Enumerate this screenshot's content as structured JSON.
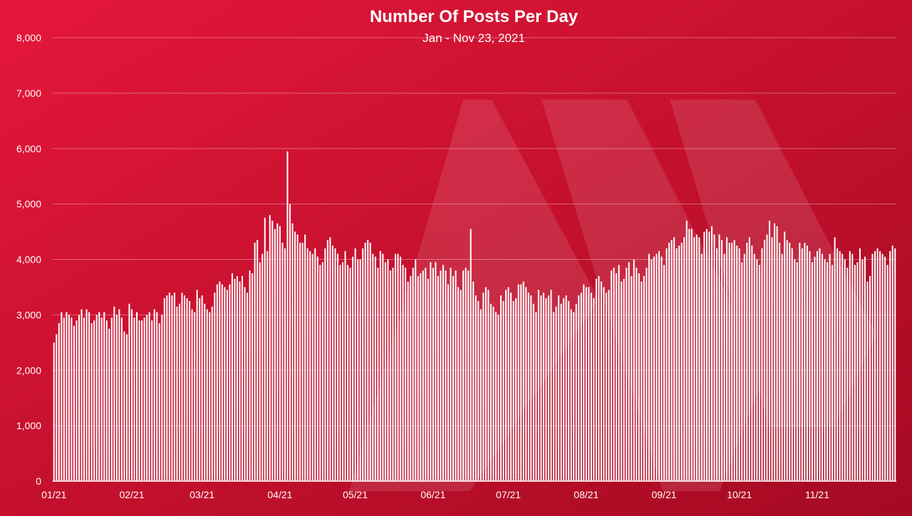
{
  "colors": {
    "background_top": "#e5173a",
    "background_bottom": "#a50a22",
    "bars": "#ffffff",
    "gridlines": "#ffffff",
    "watermark": "#ffffff"
  },
  "watermark_icon": "hive-logo-icon",
  "chart_data": {
    "type": "bar",
    "title": "Number Of Posts Per Day",
    "subtitle": "Jan - Nov 23, 2021",
    "xlabel": "",
    "ylabel": "",
    "ylim": [
      0,
      8000
    ],
    "grid": true,
    "y_ticks": [
      0,
      1000,
      2000,
      3000,
      4000,
      5000,
      6000,
      7000,
      8000
    ],
    "y_tick_labels": [
      "0",
      "1,000",
      "2,000",
      "3,000",
      "4,000",
      "5,000",
      "6,000",
      "7,000",
      "8,000"
    ],
    "x_tick_labels": [
      "01/21",
      "02/21",
      "03/21",
      "04/21",
      "05/21",
      "06/21",
      "07/21",
      "08/21",
      "09/21",
      "10/21",
      "11/21"
    ],
    "x_tick_day_index": [
      0,
      31,
      59,
      90,
      120,
      151,
      181,
      212,
      243,
      273,
      304
    ],
    "series": [
      {
        "values": [
          2500,
          2650,
          2850,
          3050,
          2950,
          3050,
          3000,
          2950,
          2800,
          2900,
          3000,
          3100,
          2950,
          3100,
          3050,
          2850,
          2900,
          3000,
          3050,
          2950,
          3050,
          2900,
          2750,
          2950,
          3150,
          3000,
          3100,
          2950,
          2700,
          2650,
          3200,
          3100,
          2950,
          3050,
          2900,
          2900,
          2950,
          3000,
          3050,
          2900,
          3100,
          3050,
          2850,
          3000,
          3300,
          3350,
          3400,
          3350,
          3400,
          3150,
          3200,
          3400,
          3350,
          3300,
          3250,
          3100,
          3050,
          3450,
          3300,
          3350,
          3200,
          3100,
          3050,
          3150,
          3400,
          3550,
          3600,
          3550,
          3500,
          3450,
          3550,
          3750,
          3650,
          3700,
          3600,
          3700,
          3500,
          3400,
          3800,
          3750,
          4300,
          4350,
          3950,
          4100,
          4750,
          4150,
          4800,
          4700,
          4550,
          4650,
          4600,
          4300,
          4200,
          5950,
          5000,
          4650,
          4500,
          4450,
          4300,
          4300,
          4450,
          4200,
          4150,
          4100,
          4200,
          4050,
          3900,
          3950,
          4200,
          4350,
          4400,
          4250,
          4200,
          4100,
          3900,
          3950,
          4150,
          3900,
          3850,
          4050,
          4200,
          4000,
          4000,
          4200,
          4300,
          4350,
          4300,
          4100,
          4050,
          3850,
          4150,
          4100,
          3950,
          4000,
          3800,
          3850,
          4100,
          4100,
          4050,
          3900,
          3850,
          3600,
          3700,
          3850,
          4000,
          3700,
          3750,
          3800,
          3850,
          3650,
          3950,
          3850,
          3950,
          3700,
          3800,
          3900,
          3800,
          3550,
          3850,
          3700,
          3800,
          3500,
          3450,
          3800,
          3850,
          3800,
          4550,
          3600,
          3350,
          3250,
          3100,
          3400,
          3500,
          3450,
          3200,
          3150,
          3050,
          3000,
          3350,
          3250,
          3450,
          3500,
          3400,
          3250,
          3300,
          3550,
          3550,
          3600,
          3500,
          3400,
          3350,
          3200,
          3050,
          3450,
          3350,
          3400,
          3300,
          3350,
          3450,
          3050,
          3150,
          3350,
          3200,
          3300,
          3350,
          3250,
          3100,
          3050,
          3200,
          3350,
          3400,
          3550,
          3500,
          3500,
          3400,
          3300,
          3650,
          3700,
          3600,
          3500,
          3400,
          3450,
          3800,
          3850,
          3750,
          3900,
          3600,
          3650,
          3850,
          3950,
          3700,
          4000,
          3850,
          3750,
          3600,
          3700,
          3850,
          4100,
          4000,
          4050,
          4100,
          4150,
          4050,
          3900,
          4200,
          4300,
          4350,
          4400,
          4200,
          4250,
          4300,
          4400,
          4700,
          4550,
          4550,
          4400,
          4450,
          4400,
          4100,
          4500,
          4550,
          4500,
          4600,
          4450,
          4200,
          4450,
          4350,
          4100,
          4400,
          4300,
          4300,
          4350,
          4250,
          4200,
          3950,
          4100,
          4300,
          4400,
          4250,
          4100,
          4000,
          3900,
          4200,
          4350,
          4450,
          4700,
          4400,
          4650,
          4600,
          4300,
          4100,
          4500,
          4350,
          4300,
          4200,
          4000,
          3950,
          4300,
          4200,
          4300,
          4250,
          4150,
          3950,
          4050,
          4150,
          4200,
          4100,
          4000,
          3950,
          4100,
          3900,
          4400,
          4200,
          4150,
          4100,
          4000,
          3850,
          4150,
          4100,
          3900,
          3950,
          4200,
          4000,
          4050,
          3600,
          3700,
          4100,
          4150,
          4200,
          4150,
          4100,
          4050,
          3900,
          4150,
          4250,
          4200
        ]
      }
    ]
  }
}
